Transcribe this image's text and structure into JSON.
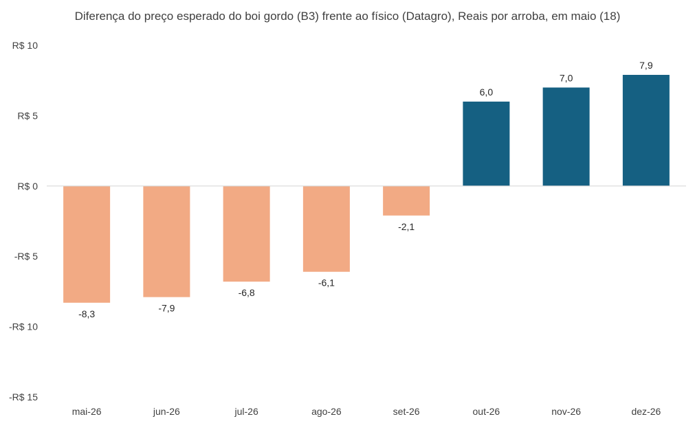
{
  "chart_data": {
    "type": "bar",
    "title": "Diferença do preço esperado do boi gordo (B3) frente ao físico (Datagro), Reais por arroba, em maio (18)",
    "xlabel": "",
    "ylabel": "",
    "categories": [
      "mai-26",
      "jun-26",
      "jul-26",
      "ago-26",
      "set-26",
      "out-26",
      "nov-26",
      "dez-26"
    ],
    "values": [
      -8.3,
      -7.9,
      -6.8,
      -6.1,
      -2.1,
      6.0,
      7.0,
      7.9
    ],
    "data_labels": [
      "-8,3",
      "-7,9",
      "-6,8",
      "-6,1",
      "-2,1",
      "6,0",
      "7,0",
      "7,9"
    ],
    "ylim": [
      -15,
      10
    ],
    "yticks": [
      10,
      5,
      0,
      -5,
      -10,
      -15
    ],
    "ytick_labels": [
      "R$ 10",
      "R$ 5",
      "R$ 0",
      "-R$ 5",
      "-R$ 10",
      "-R$ 15"
    ],
    "grid": false,
    "legend": "none",
    "colors": {
      "negative": "#F2AA84",
      "positive": "#156082",
      "axis": "#d9d9d9"
    }
  }
}
